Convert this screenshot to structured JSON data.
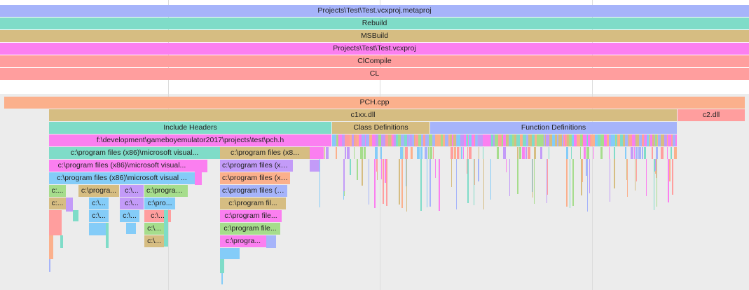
{
  "colors": {
    "blue": "#a6b4fa",
    "teal": "#7fdcc8",
    "tan": "#d6bd82",
    "magenta": "#fb7ff0",
    "salmon": "#ff9e9e",
    "peach": "#fbb08c",
    "green": "#a6dd8c",
    "purple": "#c39bf8",
    "sky": "#84ccf8"
  },
  "top_events": [
    {
      "label": "Projects\\Test\\Test.vcxproj.metaproj",
      "color": "blue"
    },
    {
      "label": "Rebuild",
      "color": "teal"
    },
    {
      "label": "MSBuild",
      "color": "tan"
    },
    {
      "label": "Projects\\Test\\Test.vcxproj",
      "color": "magenta"
    },
    {
      "label": "ClCompile",
      "color": "salmon"
    },
    {
      "label": "CL",
      "color": "salmon"
    }
  ],
  "compile": {
    "file": {
      "label": "PCH.cpp",
      "color": "peach"
    },
    "frontend": {
      "label": "c1xx.dll",
      "color": "tan"
    },
    "backend": {
      "label": "c2.dll",
      "color": "salmon"
    },
    "phases": {
      "include": {
        "label": "Include Headers",
        "color": "teal"
      },
      "classes": {
        "label": "Class Definitions",
        "color": "tan"
      },
      "functions": {
        "label": "Function Definitions",
        "color": "blue"
      }
    },
    "pch_header": {
      "label": "f:\\development\\gameboyemulator2017\\projects\\test\\pch.h",
      "color": "magenta"
    }
  },
  "includes_left": [
    {
      "label": "c:\\program files (x86)\\microsoft visual...",
      "color": "teal"
    },
    {
      "label": "c:\\program files (x86)\\microsoft visual...",
      "color": "magenta"
    },
    {
      "label": "c:\\program files (x86)\\microsoft visual ...",
      "color": "sky"
    },
    {
      "label": "c:...",
      "color": "green"
    },
    {
      "label": "c:\\progra...",
      "color": "tan"
    },
    {
      "label": "c:\\...",
      "color": "purple"
    },
    {
      "label": "c:\\program...",
      "color": "green"
    },
    {
      "label": "c:...",
      "color": "tan"
    },
    {
      "label": "c:\\...",
      "color": "sky"
    },
    {
      "label": "c:\\...",
      "color": "purple"
    },
    {
      "label": "c:\\pro...",
      "color": "sky"
    },
    {
      "label": "c:\\...",
      "color": "sky"
    },
    {
      "label": "c:\\...",
      "color": "sky"
    },
    {
      "label": "c:\\...",
      "color": "salmon"
    },
    {
      "label": "c:\\...",
      "color": "green"
    },
    {
      "label": "c:\\...",
      "color": "tan"
    }
  ],
  "includes_right": [
    {
      "label": "c:\\program files (x8...",
      "color": "tan"
    },
    {
      "label": "c:\\program files (x8...",
      "color": "purple"
    },
    {
      "label": "c:\\program files (x8...",
      "color": "peach"
    },
    {
      "label": "c:\\program files (x...",
      "color": "blue"
    },
    {
      "label": "c:\\program fil...",
      "color": "tan"
    },
    {
      "label": "c:\\program file...",
      "color": "magenta"
    },
    {
      "label": "c:\\program file...",
      "color": "green"
    },
    {
      "label": "c:\\progra...",
      "color": "magenta"
    }
  ]
}
